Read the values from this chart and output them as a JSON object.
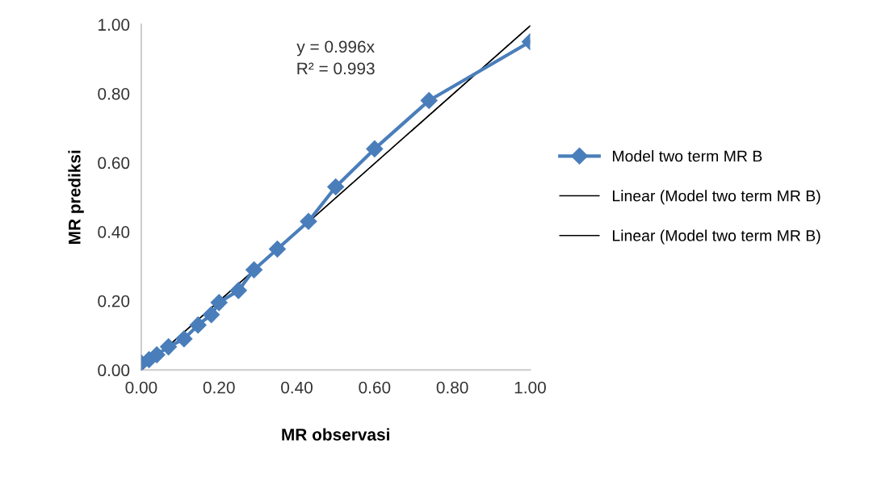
{
  "chart_data": {
    "type": "line",
    "xlabel": "MR observasi",
    "ylabel": "MR prediksi",
    "xlim": [
      0,
      1
    ],
    "ylim": [
      0,
      1
    ],
    "xticks": [
      {
        "value": 0,
        "label": "0.00"
      },
      {
        "value": 0.2,
        "label": "0.20"
      },
      {
        "value": 0.4,
        "label": "0.40"
      },
      {
        "value": 0.6,
        "label": "0.60"
      },
      {
        "value": 0.8,
        "label": "0.80"
      },
      {
        "value": 1,
        "label": "1.00"
      }
    ],
    "yticks": [
      {
        "value": 0,
        "label": "0.00"
      },
      {
        "value": 0.2,
        "label": "0.20"
      },
      {
        "value": 0.4,
        "label": "0.40"
      },
      {
        "value": 0.6,
        "label": "0.60"
      },
      {
        "value": 0.8,
        "label": "0.80"
      },
      {
        "value": 1,
        "label": "1.00"
      }
    ],
    "grid": false,
    "legend": "right",
    "annotations": [
      "y = 0.996x\nR² = 0.993"
    ],
    "series": [
      {
        "name": "Model two term MR B",
        "color": "#4a7ebb",
        "marker": "diamond",
        "x": [
          0.0,
          0.02,
          0.04,
          0.07,
          0.11,
          0.146,
          0.18,
          0.2,
          0.25,
          0.29,
          0.35,
          0.43,
          0.5,
          0.6,
          0.74,
          1.0
        ],
        "values": [
          0.02,
          0.03,
          0.044,
          0.067,
          0.09,
          0.13,
          0.16,
          0.195,
          0.23,
          0.29,
          0.35,
          0.43,
          0.53,
          0.64,
          0.78,
          0.95
        ]
      },
      {
        "name": "Linear (Model two term MR B)",
        "color": "#000000",
        "marker": "none",
        "x": [
          0,
          1
        ],
        "values": [
          0,
          0.996
        ]
      },
      {
        "name": "Linear (Model two term MR B)",
        "color": "#000000",
        "marker": "none",
        "x": [
          0,
          1
        ],
        "values": [
          0,
          0.996
        ]
      }
    ]
  }
}
